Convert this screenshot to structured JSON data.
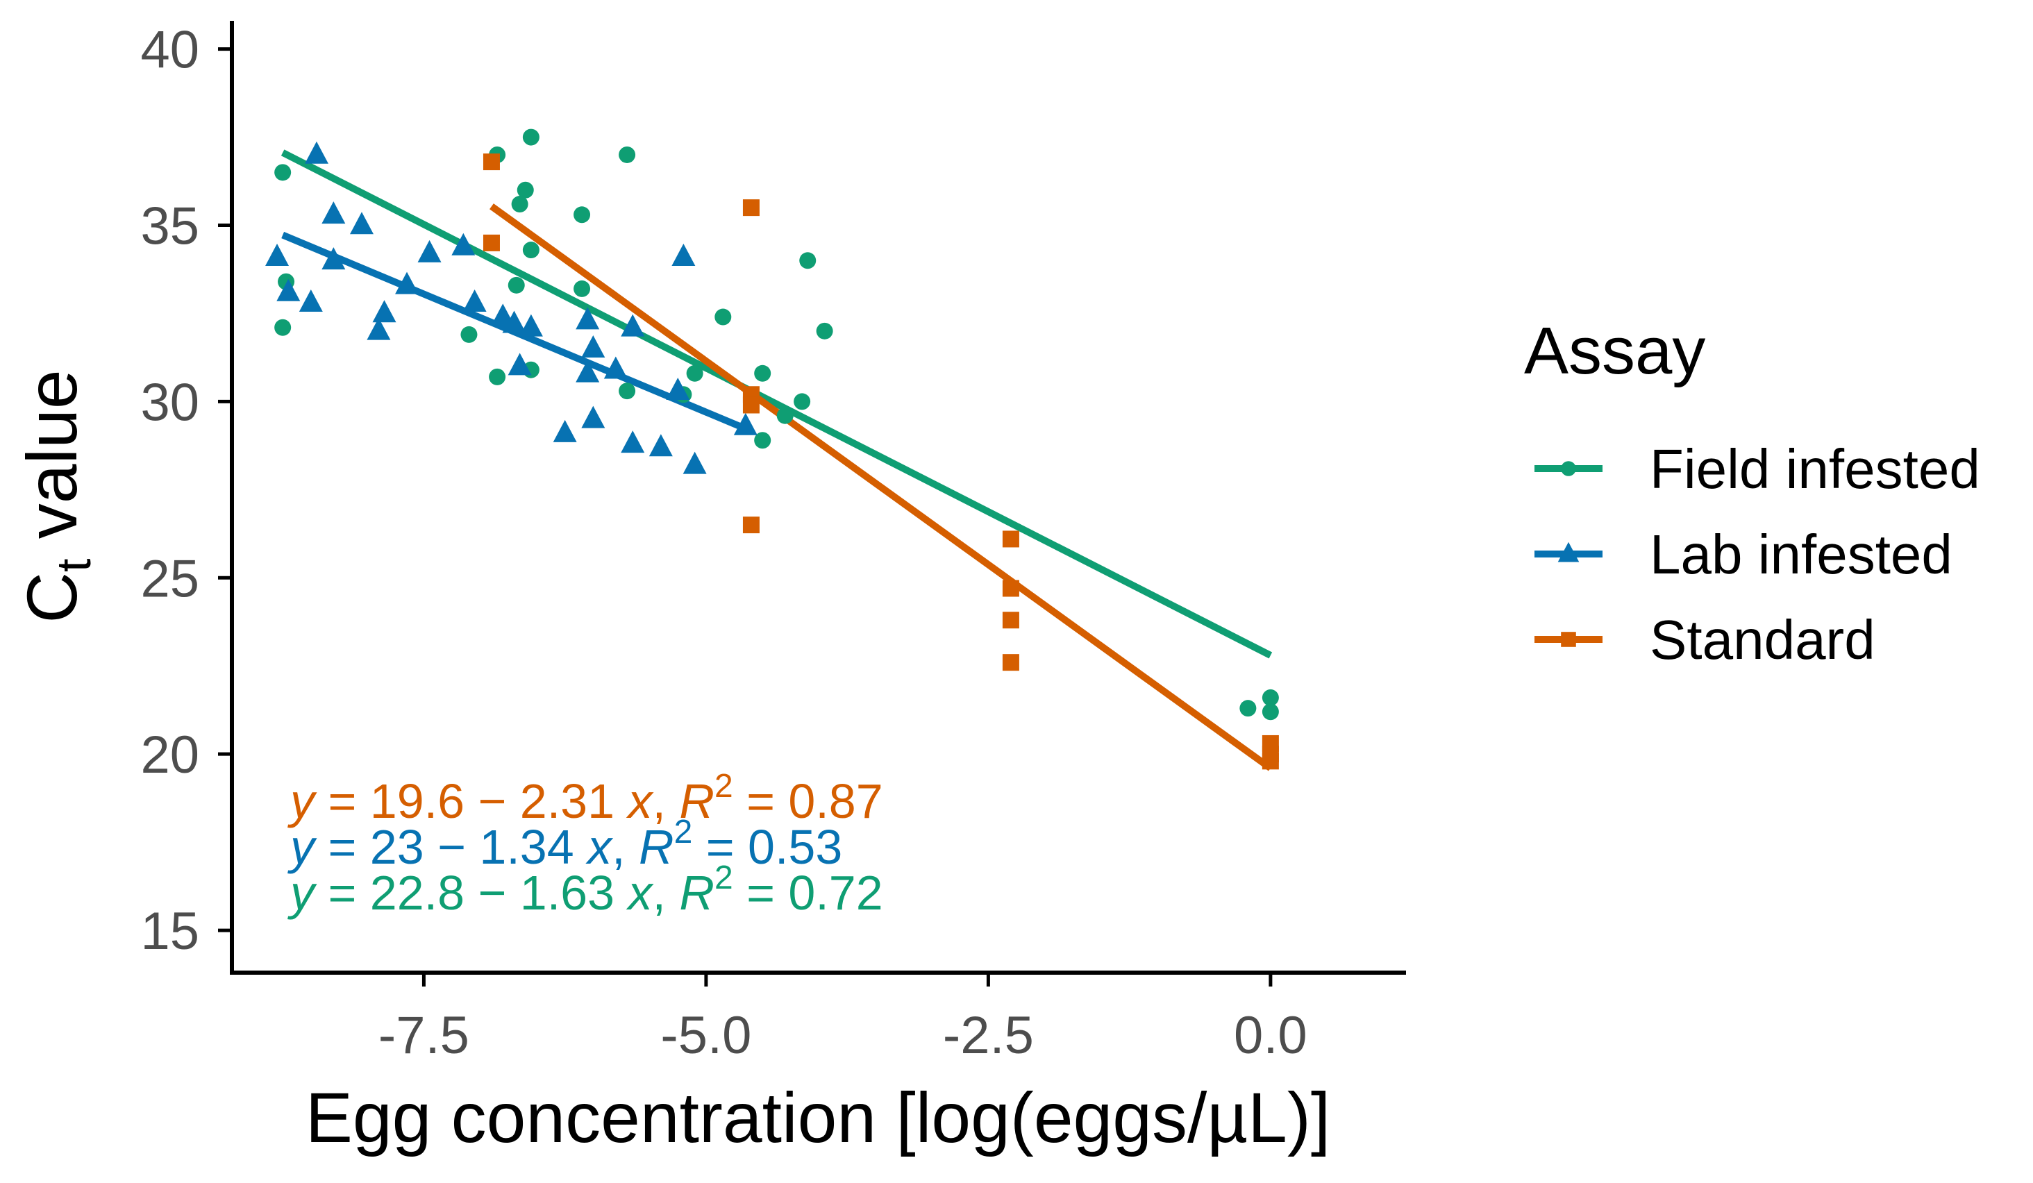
{
  "chart_data": {
    "type": "scatter",
    "title": "",
    "xlabel": "Egg concentration [log(eggs/µL)]",
    "ylabel_main": "C",
    "ylabel_sub": "t",
    "ylabel_rest": " value",
    "xlim": [
      -9.2,
      1.2
    ],
    "ylim": [
      13.8,
      40.8
    ],
    "xticks": [
      -7.5,
      -5.0,
      -2.5,
      0.0
    ],
    "xtick_labels": [
      "-7.5",
      "-5.0",
      "-2.5",
      "0.0"
    ],
    "yticks": [
      15,
      20,
      25,
      30,
      35,
      40
    ],
    "ytick_labels": [
      "15",
      "20",
      "25",
      "30",
      "35",
      "40"
    ],
    "grid": false,
    "legend": {
      "title": "Assay",
      "position": "right",
      "entries": [
        "Field infested",
        "Lab infested",
        "Standard"
      ]
    },
    "series": [
      {
        "name": "Field infested",
        "color": "#0f9e73",
        "marker": "circle",
        "fit": {
          "intercept": 22.8,
          "slope": -1.63,
          "x_range": [
            -8.75,
            0.0
          ]
        },
        "points": [
          {
            "x": -8.75,
            "y": 36.5
          },
          {
            "x": -8.72,
            "y": 33.4
          },
          {
            "x": -8.75,
            "y": 32.1
          },
          {
            "x": -6.85,
            "y": 37.0
          },
          {
            "x": -6.55,
            "y": 37.5
          },
          {
            "x": -5.7,
            "y": 37.0
          },
          {
            "x": -6.6,
            "y": 36.0
          },
          {
            "x": -6.65,
            "y": 35.6
          },
          {
            "x": -6.1,
            "y": 35.3
          },
          {
            "x": -6.55,
            "y": 34.3
          },
          {
            "x": -4.1,
            "y": 34.0
          },
          {
            "x": -6.68,
            "y": 33.3
          },
          {
            "x": -6.1,
            "y": 33.2
          },
          {
            "x": -4.85,
            "y": 32.4
          },
          {
            "x": -3.95,
            "y": 32.0
          },
          {
            "x": -7.1,
            "y": 31.9
          },
          {
            "x": -6.55,
            "y": 30.9
          },
          {
            "x": -6.85,
            "y": 30.7
          },
          {
            "x": -5.1,
            "y": 30.8
          },
          {
            "x": -4.5,
            "y": 30.8
          },
          {
            "x": -5.7,
            "y": 30.3
          },
          {
            "x": -5.2,
            "y": 30.2
          },
          {
            "x": -4.3,
            "y": 29.6
          },
          {
            "x": -4.5,
            "y": 28.9
          },
          {
            "x": -4.15,
            "y": 30.0
          },
          {
            "x": -0.2,
            "y": 21.3
          },
          {
            "x": 0.0,
            "y": 21.6
          },
          {
            "x": 0.0,
            "y": 21.2
          }
        ]
      },
      {
        "name": "Lab infested",
        "color": "#0772b2",
        "marker": "triangle",
        "fit": {
          "intercept": 23.0,
          "slope": -1.34,
          "x_range": [
            -8.75,
            -4.6
          ]
        },
        "points": [
          {
            "x": -8.45,
            "y": 37.0
          },
          {
            "x": -8.3,
            "y": 35.3
          },
          {
            "x": -8.05,
            "y": 35.0
          },
          {
            "x": -8.3,
            "y": 34.0
          },
          {
            "x": -8.8,
            "y": 34.1
          },
          {
            "x": -7.45,
            "y": 34.2
          },
          {
            "x": -7.15,
            "y": 34.4
          },
          {
            "x": -8.7,
            "y": 33.1
          },
          {
            "x": -8.5,
            "y": 32.8
          },
          {
            "x": -7.65,
            "y": 33.3
          },
          {
            "x": -7.85,
            "y": 32.5
          },
          {
            "x": -7.9,
            "y": 32.0
          },
          {
            "x": -7.05,
            "y": 32.8
          },
          {
            "x": -6.8,
            "y": 32.4
          },
          {
            "x": -6.7,
            "y": 32.2
          },
          {
            "x": -6.55,
            "y": 32.1
          },
          {
            "x": -6.05,
            "y": 32.3
          },
          {
            "x": -5.65,
            "y": 32.1
          },
          {
            "x": -6.0,
            "y": 31.5
          },
          {
            "x": -6.05,
            "y": 30.8
          },
          {
            "x": -5.8,
            "y": 30.9
          },
          {
            "x": -6.65,
            "y": 31.0
          },
          {
            "x": -5.2,
            "y": 34.1
          },
          {
            "x": -5.25,
            "y": 30.3
          },
          {
            "x": -6.0,
            "y": 29.5
          },
          {
            "x": -6.25,
            "y": 29.1
          },
          {
            "x": -5.65,
            "y": 28.8
          },
          {
            "x": -5.4,
            "y": 28.7
          },
          {
            "x": -5.1,
            "y": 28.2
          },
          {
            "x": -4.65,
            "y": 29.3
          }
        ]
      },
      {
        "name": "Standard",
        "color": "#d55e00",
        "marker": "square",
        "fit": {
          "intercept": 19.6,
          "slope": -2.31,
          "x_range": [
            -6.9,
            0.0
          ]
        },
        "points": [
          {
            "x": -6.9,
            "y": 36.8
          },
          {
            "x": -6.9,
            "y": 34.5
          },
          {
            "x": -4.6,
            "y": 35.5
          },
          {
            "x": -4.6,
            "y": 30.2
          },
          {
            "x": -4.6,
            "y": 29.9
          },
          {
            "x": -4.6,
            "y": 26.5
          },
          {
            "x": -2.3,
            "y": 26.1
          },
          {
            "x": -2.3,
            "y": 24.7
          },
          {
            "x": -2.3,
            "y": 23.8
          },
          {
            "x": -2.3,
            "y": 22.6
          },
          {
            "x": 0.0,
            "y": 20.3
          },
          {
            "x": 0.0,
            "y": 20.0
          },
          {
            "x": 0.0,
            "y": 19.8
          }
        ]
      }
    ],
    "annotations": [
      {
        "series": "Standard",
        "y_var": "y",
        "eq": " = 19.6 − 2.31 ",
        "x_var": "x",
        "sep": ", ",
        "r_var": "R",
        "r_sup": "2",
        "r_val": " = 0.87",
        "color": "#d55e00"
      },
      {
        "series": "Lab infested",
        "y_var": "y",
        "eq": " = 23 − 1.34 ",
        "x_var": "x",
        "sep": ", ",
        "r_var": "R",
        "r_sup": "2",
        "r_val": " = 0.53",
        "color": "#0772b2"
      },
      {
        "series": "Field infested",
        "y_var": "y",
        "eq": " = 22.8 − 1.63 ",
        "x_var": "x",
        "sep": ", ",
        "r_var": "R",
        "r_sup": "2",
        "r_val": " = 0.72",
        "color": "#0f9e73"
      }
    ]
  }
}
